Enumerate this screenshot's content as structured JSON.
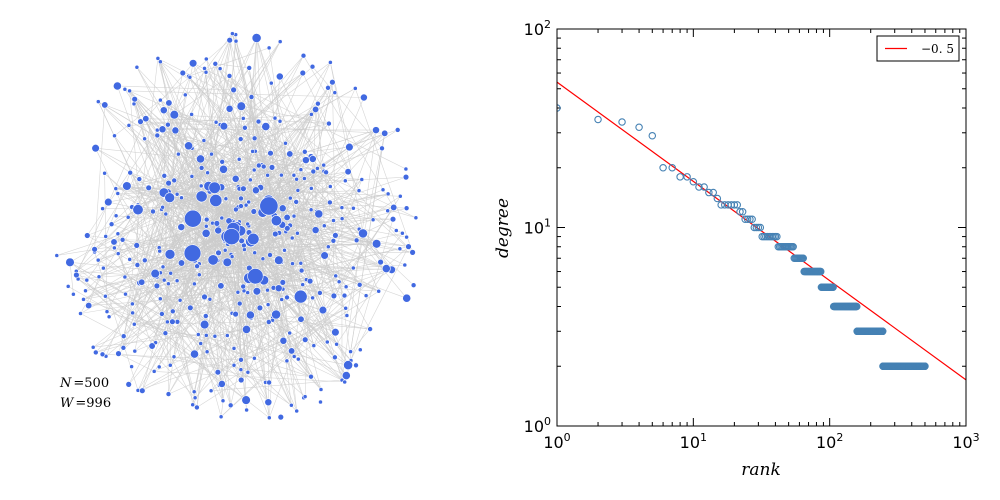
{
  "network": {
    "stat_n_label": "N",
    "stat_n_value": "500",
    "stat_w_label": "W",
    "stat_w_value": "996",
    "node_color": "#4169e1",
    "edge_color": "#cccccc",
    "node_count": 500,
    "edge_count": 996
  },
  "chart_data": {
    "type": "scatter",
    "xscale": "log",
    "yscale": "log",
    "xlim": [
      1,
      1000
    ],
    "ylim": [
      1,
      100
    ],
    "xlabel": "rank",
    "ylabel": "degree",
    "x_ticks": [
      {
        "base": "10",
        "exp": "0",
        "value": 1
      },
      {
        "base": "10",
        "exp": "1",
        "value": 10
      },
      {
        "base": "10",
        "exp": "2",
        "value": 100
      },
      {
        "base": "10",
        "exp": "3",
        "value": 1000
      }
    ],
    "y_ticks": [
      {
        "base": "10",
        "exp": "0",
        "value": 1
      },
      {
        "base": "10",
        "exp": "1",
        "value": 10
      },
      {
        "base": "10",
        "exp": "2",
        "value": 100
      }
    ],
    "marker_color": "#4682b4",
    "fit": {
      "label": "−0. 5",
      "slope": -0.5,
      "intercept_at_x1": 54,
      "color": "#ff0000"
    },
    "legend_position": "top-right",
    "degree_groups": [
      {
        "rank_start": 1,
        "rank_end": 1,
        "degree": 40
      },
      {
        "rank_start": 2,
        "rank_end": 2,
        "degree": 35
      },
      {
        "rank_start": 3,
        "rank_end": 3,
        "degree": 34
      },
      {
        "rank_start": 4,
        "rank_end": 4,
        "degree": 32
      },
      {
        "rank_start": 5,
        "rank_end": 5,
        "degree": 29
      },
      {
        "rank_start": 6,
        "rank_end": 7,
        "degree": 20
      },
      {
        "rank_start": 8,
        "rank_end": 9,
        "degree": 18
      },
      {
        "rank_start": 10,
        "rank_end": 10,
        "degree": 17
      },
      {
        "rank_start": 11,
        "rank_end": 12,
        "degree": 16
      },
      {
        "rank_start": 13,
        "rank_end": 14,
        "degree": 15
      },
      {
        "rank_start": 15,
        "rank_end": 15,
        "degree": 14
      },
      {
        "rank_start": 16,
        "rank_end": 21,
        "degree": 13
      },
      {
        "rank_start": 22,
        "rank_end": 23,
        "degree": 12
      },
      {
        "rank_start": 24,
        "rank_end": 27,
        "degree": 11
      },
      {
        "rank_start": 28,
        "rank_end": 31,
        "degree": 10
      },
      {
        "rank_start": 32,
        "rank_end": 41,
        "degree": 9
      },
      {
        "rank_start": 42,
        "rank_end": 54,
        "degree": 8
      },
      {
        "rank_start": 55,
        "rank_end": 64,
        "degree": 7
      },
      {
        "rank_start": 65,
        "rank_end": 86,
        "degree": 6
      },
      {
        "rank_start": 87,
        "rank_end": 106,
        "degree": 5
      },
      {
        "rank_start": 107,
        "rank_end": 158,
        "degree": 4
      },
      {
        "rank_start": 159,
        "rank_end": 245,
        "degree": 3
      },
      {
        "rank_start": 246,
        "rank_end": 500,
        "degree": 2
      }
    ]
  }
}
